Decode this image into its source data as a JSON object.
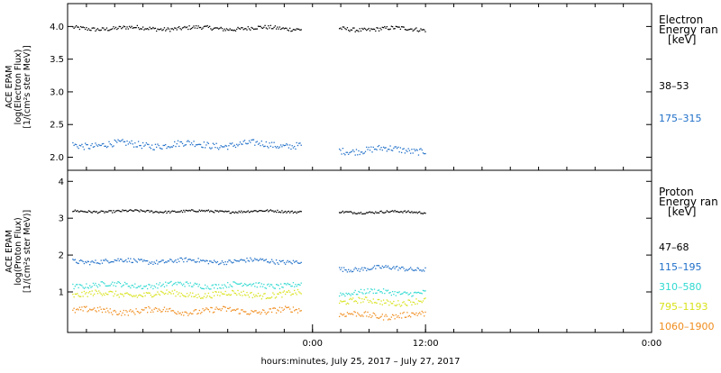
{
  "chart_data": [
    {
      "type": "scatter",
      "ylabel_lines": [
        "ACE EPAM",
        "log(Electron Flux)",
        "[1/(cm²s ster MeV)]"
      ],
      "yticks": [
        2.0,
        2.5,
        3.0,
        3.5,
        4.0
      ],
      "ylim": [
        1.8,
        4.35
      ],
      "legend_title_lines": [
        "Electron",
        "Energy ran",
        "[keV]"
      ],
      "series": [
        {
          "name": "38–53",
          "color": "#000000",
          "segments": [
            {
              "x0": -25.5,
              "x1": -1.2,
              "y": 3.98
            },
            {
              "x0": 2.8,
              "x1": 12.0,
              "y": 3.97
            }
          ],
          "noise": 0.03
        },
        {
          "name": "175–315",
          "color": "#1f6fc8",
          "segments": [
            {
              "x0": -25.5,
              "x1": -1.2,
              "y": 2.2
            },
            {
              "x0": 2.8,
              "x1": 12.0,
              "y": 2.12
            }
          ],
          "noise": 0.05
        }
      ]
    },
    {
      "type": "scatter",
      "ylabel_lines": [
        "ACE EPAM",
        "log(Proton Flux)",
        "[1/(cm²s ster MeV)]"
      ],
      "yticks": [
        1,
        2,
        3,
        4
      ],
      "ylim": [
        -0.1,
        4.3
      ],
      "legend_title_lines": [
        "Proton",
        "Energy ran",
        "[keV]"
      ],
      "series": [
        {
          "name": "47–68",
          "color": "#000000",
          "segments": [
            {
              "x0": -25.5,
              "x1": -1.2,
              "y": 3.2
            },
            {
              "x0": 2.8,
              "x1": 12.0,
              "y": 3.18
            }
          ],
          "noise": 0.03
        },
        {
          "name": "115–195",
          "color": "#1f6fc8",
          "segments": [
            {
              "x0": -25.5,
              "x1": -1.2,
              "y": 1.85
            },
            {
              "x0": 2.8,
              "x1": 12.0,
              "y": 1.65
            }
          ],
          "noise": 0.06
        },
        {
          "name": "310–580",
          "color": "#2fd9d0",
          "segments": [
            {
              "x0": -25.5,
              "x1": -1.2,
              "y": 1.2
            },
            {
              "x0": 2.8,
              "x1": 12.0,
              "y": 1.0
            }
          ],
          "noise": 0.07
        },
        {
          "name": "795–1193",
          "color": "#d8e21a",
          "segments": [
            {
              "x0": -25.5,
              "x1": -1.2,
              "y": 0.95
            },
            {
              "x0": 2.8,
              "x1": 12.0,
              "y": 0.75
            }
          ],
          "noise": 0.08
        },
        {
          "name": "1060–1900",
          "color": "#f08c1c",
          "segments": [
            {
              "x0": -25.5,
              "x1": -1.2,
              "y": 0.5
            },
            {
              "x0": 2.8,
              "x1": 12.0,
              "y": 0.38
            }
          ],
          "noise": 0.08
        }
      ]
    }
  ],
  "x_axis": {
    "xlim": [
      -26.0,
      36.0
    ],
    "ticks": [
      {
        "value": 0,
        "label": "0:00"
      },
      {
        "value": 12,
        "label": "12:00"
      },
      {
        "value": 36,
        "label": "0:00"
      }
    ],
    "minor_step": 3,
    "xlabel": "hours:minutes, July 25, 2017 – July 27, 2017"
  }
}
